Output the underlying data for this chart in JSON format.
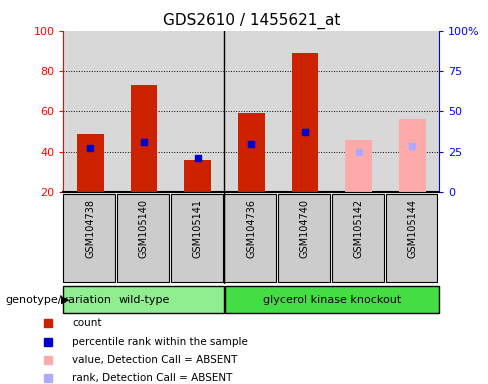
{
  "title": "GDS2610 / 1455621_at",
  "samples": [
    "GSM104738",
    "GSM105140",
    "GSM105141",
    "GSM104736",
    "GSM104740",
    "GSM105142",
    "GSM105144"
  ],
  "count_values": [
    49,
    73,
    36,
    59,
    89,
    null,
    null
  ],
  "rank_values": [
    42,
    45,
    37,
    44,
    50,
    null,
    null
  ],
  "absent_value_values": [
    null,
    null,
    null,
    null,
    null,
    46,
    56
  ],
  "absent_rank_values": [
    null,
    null,
    null,
    null,
    null,
    40,
    43
  ],
  "ymin": 20,
  "ymax": 100,
  "yticks": [
    20,
    40,
    60,
    80,
    100
  ],
  "y2ticks_labels": [
    "0",
    "25",
    "50",
    "75",
    "100%"
  ],
  "y2ticks_pos": [
    20,
    40,
    60,
    80,
    100
  ],
  "bar_width": 0.5,
  "count_color": "#cc2200",
  "rank_color": "#0000cc",
  "absent_value_color": "#ffaaaa",
  "absent_rank_color": "#aaaaff",
  "background_color": "#ffffff",
  "plot_bg_color": "#d8d8d8",
  "sample_bg_color": "#cccccc",
  "wt_color": "#90ee90",
  "gk_color": "#44dd44",
  "group_label": "genotype/variation",
  "wt_label": "wild-type",
  "gk_label": "glycerol kinase knockout",
  "wt_indices": [
    0,
    1,
    2
  ],
  "gk_indices": [
    3,
    4,
    5,
    6
  ],
  "legend_items": [
    {
      "label": "count",
      "color": "#cc2200"
    },
    {
      "label": "percentile rank within the sample",
      "color": "#0000cc"
    },
    {
      "label": "value, Detection Call = ABSENT",
      "color": "#ffaaaa"
    },
    {
      "label": "rank, Detection Call = ABSENT",
      "color": "#aaaaff"
    }
  ]
}
